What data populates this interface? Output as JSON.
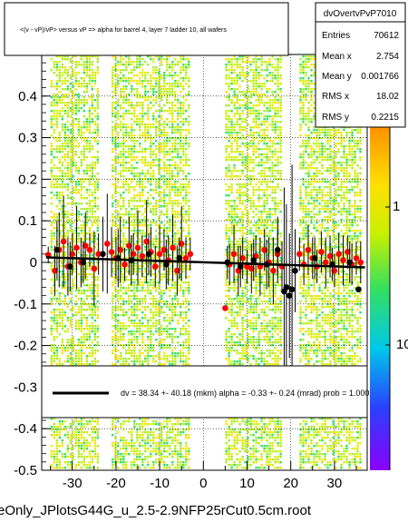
{
  "chart_data": {
    "type": "scatter",
    "title": "<(v - vP)/vP> versus   vP => alpha for barrel 4, layer 7 ladder 10, all wafers",
    "xlim": [
      -37,
      37.5
    ],
    "ylim": [
      -0.5,
      0.5
    ],
    "x_ticks": [
      -30,
      -20,
      -10,
      0,
      10,
      20,
      30
    ],
    "y_ticks": [
      0.4,
      0.3,
      0.2,
      0.1,
      0,
      -0.1,
      -0.2,
      -0.3,
      -0.4,
      -0.5
    ],
    "y_tick_labels": [
      "0.4",
      "0.3",
      "0.2",
      "0.1",
      "0",
      "-0.1",
      "-0.2",
      "-0.3",
      "-0.4",
      "-0.5"
    ],
    "x_tick_labels": [
      "-30",
      "-20",
      "-10",
      "0",
      "10",
      "20",
      "30"
    ],
    "grid": true,
    "colorbar_labels": [
      "1",
      "10"
    ],
    "colorbar_tick_values": [
      1,
      10
    ],
    "bands": [
      {
        "x_range": [
          -35,
          -24
        ]
      },
      {
        "x_range": [
          -21,
          -3
        ]
      },
      {
        "x_range": [
          5,
          18
        ]
      },
      {
        "x_range": [
          22,
          36
        ]
      }
    ],
    "stats": {
      "name": "dvOvertvPvP7010",
      "rows": [
        {
          "label": "Entries",
          "value": "70612"
        },
        {
          "label": "Mean x",
          "value": "2.754"
        },
        {
          "label": "Mean y",
          "value": "0.001766"
        },
        {
          "label": "RMS x",
          "value": "18.02"
        },
        {
          "label": "RMS y",
          "value": "0.2215"
        }
      ]
    },
    "fit_legend": "dv =   38.34 +- 40.18 (mkm) alpha =   -0.33 +-  0.24 (mrad) prob =  1.000",
    "footer": "eOnly_JPlotsG44G_u_2.5-2.9NFP25rCut0.5cm.root",
    "series": [
      {
        "marker": "red-filled-circle",
        "points": [
          {
            "x": -35.5,
            "y": 0.018,
            "e": 0.02
          },
          {
            "x": -34.0,
            "y": -0.02,
            "e": 0.06
          },
          {
            "x": -33.0,
            "y": 0.03,
            "e": 0.09
          },
          {
            "x": -32.0,
            "y": 0.05,
            "e": 0.11
          },
          {
            "x": -31.0,
            "y": -0.01,
            "e": 0.07
          },
          {
            "x": -30.0,
            "y": 0.02,
            "e": 0.05
          },
          {
            "x": -29.0,
            "y": 0.035,
            "e": 0.1
          },
          {
            "x": -28.0,
            "y": 0.0,
            "e": 0.06
          },
          {
            "x": -27.0,
            "y": 0.04,
            "e": 0.08
          },
          {
            "x": -26.0,
            "y": 0.03,
            "e": 0.04
          },
          {
            "x": -25.0,
            "y": -0.015,
            "e": 0.09
          },
          {
            "x": -24.0,
            "y": 0.02,
            "e": 0.05
          },
          {
            "x": -22.0,
            "y": 0.045,
            "e": 0.12
          },
          {
            "x": -21.0,
            "y": 0.025,
            "e": 0.06
          },
          {
            "x": -20.0,
            "y": 0.01,
            "e": 0.05
          },
          {
            "x": -19.0,
            "y": 0.03,
            "e": 0.08
          },
          {
            "x": -18.0,
            "y": -0.005,
            "e": 0.04
          },
          {
            "x": -17.0,
            "y": 0.04,
            "e": 0.07
          },
          {
            "x": -16.0,
            "y": 0.02,
            "e": 0.05
          },
          {
            "x": -15.0,
            "y": 0.035,
            "e": 0.09
          },
          {
            "x": -14.0,
            "y": 0.015,
            "e": 0.05
          },
          {
            "x": -13.0,
            "y": 0.05,
            "e": 0.1
          },
          {
            "x": -12.0,
            "y": 0.025,
            "e": 0.06
          },
          {
            "x": -11.0,
            "y": -0.01,
            "e": 0.05
          },
          {
            "x": -10.0,
            "y": 0.02,
            "e": 0.07
          },
          {
            "x": -9.0,
            "y": 0.03,
            "e": 0.05
          },
          {
            "x": -8.0,
            "y": 0.005,
            "e": 0.06
          },
          {
            "x": -7.0,
            "y": 0.035,
            "e": 0.08
          },
          {
            "x": -6.0,
            "y": -0.02,
            "e": 0.06
          },
          {
            "x": -5.0,
            "y": 0.045,
            "e": 0.09
          },
          {
            "x": -4.0,
            "y": 0.01,
            "e": 0.05
          },
          {
            "x": -3.0,
            "y": 0.02,
            "e": 0.04
          },
          {
            "x": 5.0,
            "y": -0.11,
            "e": 0.0
          },
          {
            "x": 6.0,
            "y": -0.005,
            "e": 0.05
          },
          {
            "x": 7.0,
            "y": 0.02,
            "e": 0.07
          },
          {
            "x": 8.0,
            "y": -0.02,
            "e": 0.06
          },
          {
            "x": 9.0,
            "y": 0.01,
            "e": 0.05
          },
          {
            "x": 10.0,
            "y": -0.01,
            "e": 0.04
          },
          {
            "x": 11.0,
            "y": -0.015,
            "e": 0.06
          },
          {
            "x": 12.0,
            "y": 0.015,
            "e": 0.05
          },
          {
            "x": 13.0,
            "y": -0.01,
            "e": 0.07
          },
          {
            "x": 14.0,
            "y": 0.03,
            "e": 0.05
          },
          {
            "x": 15.0,
            "y": 0.0,
            "e": 0.06
          },
          {
            "x": 16.0,
            "y": -0.02,
            "e": 0.08
          },
          {
            "x": 17.0,
            "y": 0.02,
            "e": 0.05
          },
          {
            "x": 18.0,
            "y": -0.01,
            "e": 0.06
          },
          {
            "x": 22.0,
            "y": 0.02,
            "e": 0.04
          },
          {
            "x": 23.0,
            "y": -0.005,
            "e": 0.05
          },
          {
            "x": 24.0,
            "y": 0.03,
            "e": 0.06
          },
          {
            "x": 25.0,
            "y": 0.01,
            "e": 0.05
          },
          {
            "x": 26.0,
            "y": -0.01,
            "e": 0.04
          },
          {
            "x": 27.0,
            "y": 0.025,
            "e": 0.05
          },
          {
            "x": 28.0,
            "y": 0.0,
            "e": 0.06
          },
          {
            "x": 29.0,
            "y": 0.015,
            "e": 0.05
          },
          {
            "x": 30.0,
            "y": -0.02,
            "e": 0.04
          },
          {
            "x": 31.0,
            "y": 0.02,
            "e": 0.05
          },
          {
            "x": 32.0,
            "y": 0.005,
            "e": 0.06
          },
          {
            "x": 33.0,
            "y": 0.025,
            "e": 0.04
          },
          {
            "x": 34.0,
            "y": -0.005,
            "e": 0.05
          },
          {
            "x": 35.0,
            "y": 0.01,
            "e": 0.04
          },
          {
            "x": 36.0,
            "y": 0.0,
            "e": 0.05
          }
        ]
      },
      {
        "marker": "black-filled-circle",
        "points": [
          {
            "x": -33.5,
            "y": 0.03,
            "e": 0.07
          },
          {
            "x": -30.5,
            "y": -0.01,
            "e": 0.06
          },
          {
            "x": -27.5,
            "y": 0.0,
            "e": 0.05
          },
          {
            "x": -23.0,
            "y": 0.02,
            "e": 0.09
          },
          {
            "x": -19.5,
            "y": 0.01,
            "e": 0.07
          },
          {
            "x": -16.5,
            "y": 0.005,
            "e": 0.06
          },
          {
            "x": -12.5,
            "y": 0.02,
            "e": 0.05
          },
          {
            "x": -8.5,
            "y": -0.005,
            "e": 0.06
          },
          {
            "x": -5.5,
            "y": 0.01,
            "e": 0.05
          },
          {
            "x": 5.5,
            "y": 0.0,
            "e": 0.04
          },
          {
            "x": 8.5,
            "y": -0.01,
            "e": 0.05
          },
          {
            "x": 11.5,
            "y": 0.005,
            "e": 0.05
          },
          {
            "x": 14.5,
            "y": -0.005,
            "e": 0.06
          },
          {
            "x": 17.0,
            "y": 0.03,
            "e": 0.08
          },
          {
            "x": 18.5,
            "y": -0.07,
            "e": 0.25
          },
          {
            "x": 19.0,
            "y": -0.06,
            "e": 0.2
          },
          {
            "x": 19.7,
            "y": -0.08,
            "e": 0.15
          },
          {
            "x": 20.3,
            "y": -0.065,
            "e": 0.3
          },
          {
            "x": 21.0,
            "y": -0.02,
            "e": 0.1
          },
          {
            "x": 25.5,
            "y": 0.01,
            "e": 0.05
          },
          {
            "x": 29.5,
            "y": -0.005,
            "e": 0.04
          },
          {
            "x": 33.5,
            "y": 0.0,
            "e": 0.05
          },
          {
            "x": 35.5,
            "y": -0.065,
            "e": 0.0
          }
        ]
      }
    ],
    "fit_line": {
      "x": [
        -36,
        37
      ],
      "y": [
        0.012,
        -0.012
      ]
    }
  }
}
